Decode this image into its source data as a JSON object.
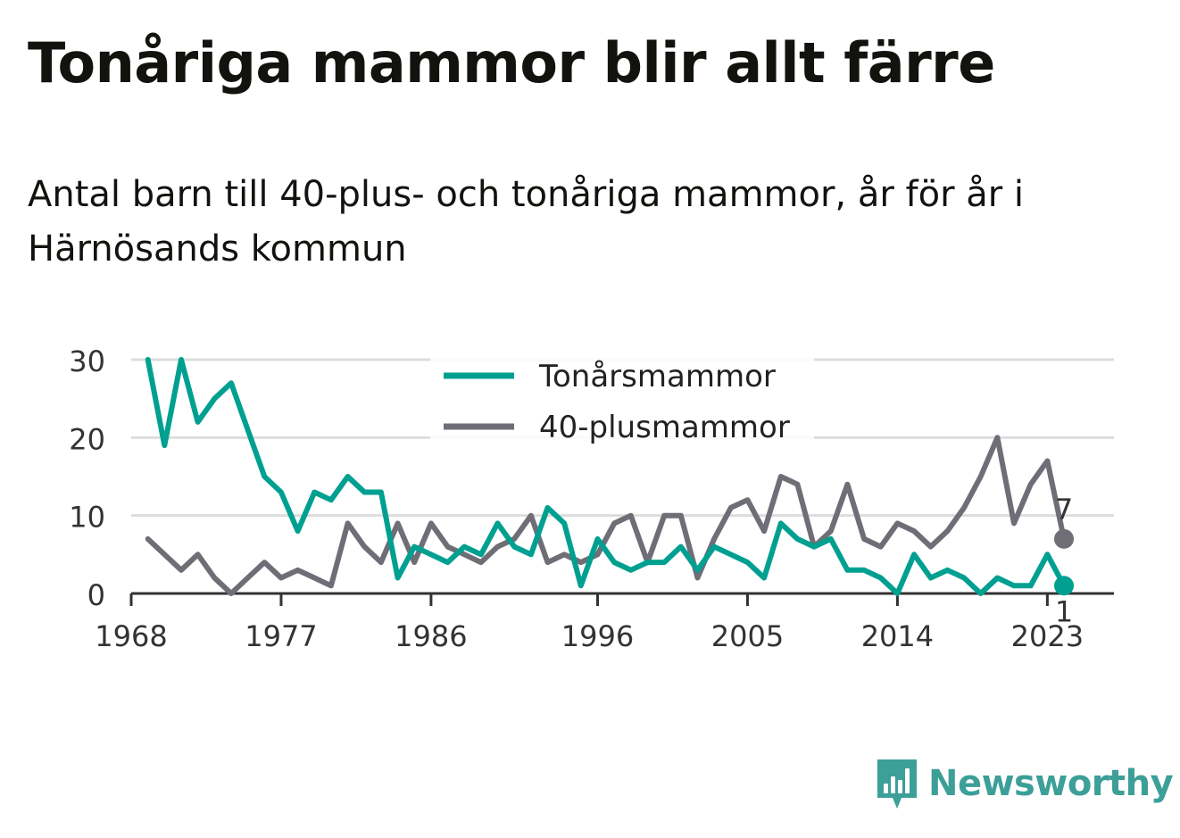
{
  "title": "Tonåriga mammor blir allt färre",
  "subtitle": "Antal barn till 40-plus- och tonåriga mammor, år för år i Härnösands kommun",
  "brand": {
    "name": "Newsworthy",
    "icon": "newsworthy-logo-icon",
    "color": "#3c9f98"
  },
  "chart_data": {
    "type": "line",
    "x": [
      1969,
      1970,
      1971,
      1972,
      1973,
      1974,
      1975,
      1976,
      1977,
      1978,
      1979,
      1980,
      1981,
      1982,
      1983,
      1984,
      1985,
      1986,
      1987,
      1988,
      1989,
      1990,
      1991,
      1992,
      1993,
      1994,
      1995,
      1996,
      1997,
      1998,
      1999,
      2000,
      2001,
      2002,
      2003,
      2004,
      2005,
      2006,
      2007,
      2008,
      2009,
      2010,
      2011,
      2012,
      2013,
      2014,
      2015,
      2016,
      2017,
      2018,
      2019,
      2020,
      2021,
      2022,
      2023,
      2024
    ],
    "series": [
      {
        "name": "Tonårsmammor",
        "color": "#00a091",
        "values": [
          30,
          19,
          30,
          22,
          25,
          27,
          21,
          15,
          13,
          8,
          13,
          12,
          15,
          13,
          13,
          2,
          6,
          5,
          4,
          6,
          5,
          9,
          6,
          5,
          11,
          9,
          1,
          7,
          4,
          3,
          4,
          4,
          6,
          3,
          6,
          5,
          4,
          2,
          9,
          7,
          6,
          7,
          3,
          3,
          2,
          0,
          5,
          2,
          3,
          2,
          0,
          2,
          1,
          1,
          5,
          1
        ]
      },
      {
        "name": "40-plusmammor",
        "color": "#6f6e77",
        "values": [
          7,
          5,
          3,
          5,
          2,
          0,
          2,
          4,
          2,
          3,
          2,
          1,
          9,
          6,
          4,
          9,
          4,
          9,
          6,
          5,
          4,
          6,
          7,
          10,
          4,
          5,
          4,
          5,
          9,
          10,
          4,
          10,
          10,
          2,
          7,
          11,
          12,
          8,
          15,
          14,
          6,
          8,
          14,
          7,
          6,
          9,
          8,
          6,
          8,
          11,
          15,
          20,
          9,
          14,
          17,
          7
        ]
      }
    ],
    "end_labels": [
      "1",
      "7"
    ],
    "x_ticks": [
      "1968",
      "1977",
      "1986",
      "1996",
      "2005",
      "2014",
      "2023"
    ],
    "y_ticks": [
      "0",
      "10",
      "20",
      "30"
    ],
    "xlim": [
      1968,
      2027
    ],
    "ylim": [
      0,
      30
    ],
    "grid": true,
    "legend": "top-center"
  }
}
